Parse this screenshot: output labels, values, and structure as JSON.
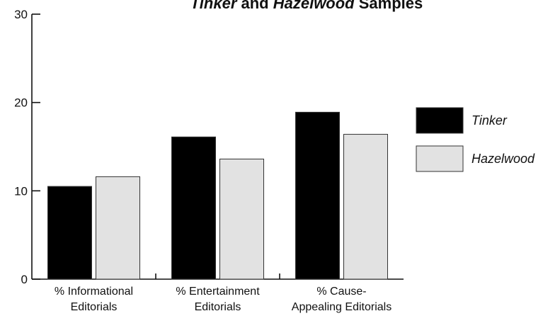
{
  "chart_data": {
    "type": "bar",
    "title_parts": [
      {
        "text": "Tinker",
        "italic": true
      },
      {
        "text": " and ",
        "italic": false
      },
      {
        "text": "Hazelwood",
        "italic": true
      },
      {
        "text": " Samples",
        "italic": false
      }
    ],
    "categories": [
      [
        "% Informational",
        "Editorials"
      ],
      [
        "% Entertainment",
        "Editorials"
      ],
      [
        "% Cause-",
        "Appealing Editorials"
      ]
    ],
    "series": [
      {
        "name": "Tinker",
        "color": "#000000",
        "values": [
          10.5,
          16.1,
          18.9
        ]
      },
      {
        "name": "Hazelwood",
        "color": "#e2e2e2",
        "values": [
          11.6,
          13.6,
          16.4
        ]
      }
    ],
    "yticks": [
      0,
      10,
      20,
      30
    ],
    "ylim": [
      0,
      30
    ],
    "grid": false,
    "legend_position": "right"
  }
}
